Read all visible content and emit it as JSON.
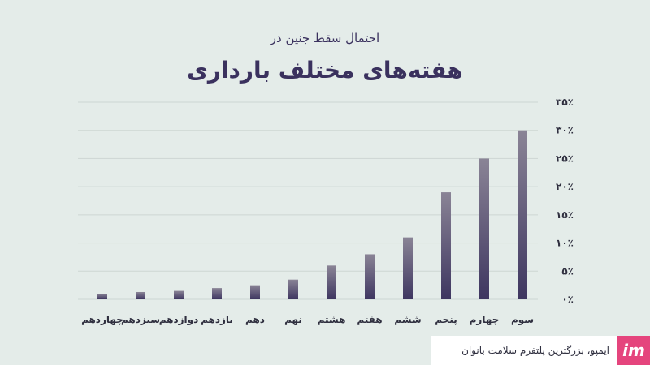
{
  "header": {
    "subtitle": "احتمال سقط جنین در",
    "title": "هفته‌های مختلف بارداری"
  },
  "colors": {
    "background": "#e4ece9",
    "bar_top": "#8a8496",
    "bar_bottom": "#3e3660",
    "title": "#3a315e",
    "grid": "#cdd6d3",
    "brand": "#e5457d"
  },
  "chart_data": {
    "type": "bar",
    "categories": [
      "سوم",
      "چهارم",
      "پنجم",
      "ششم",
      "هفتم",
      "هشتم",
      "نهم",
      "دهم",
      "یازدهم",
      "دوازدهم",
      "سیزدهم",
      "چهاردهم"
    ],
    "values": [
      30,
      25,
      19,
      11,
      8,
      6,
      3.5,
      2.5,
      2,
      1.5,
      1.3,
      1
    ],
    "ylim": [
      0,
      35
    ],
    "ytick_labels": [
      "۰٪",
      "۵٪",
      "۱۰٪",
      "۱۵٪",
      "۲۰٪",
      "۲۵٪",
      "۳۰٪",
      "۳۵٪"
    ],
    "ytick_values": [
      0,
      5,
      10,
      15,
      20,
      25,
      30,
      35
    ],
    "grid": true,
    "xaxis_direction": "right-to-left",
    "yaxis_side": "right"
  },
  "footer": {
    "logo": "im",
    "text": "ایمپو، بزرگترین پلتفرم سلامت بانوان"
  }
}
